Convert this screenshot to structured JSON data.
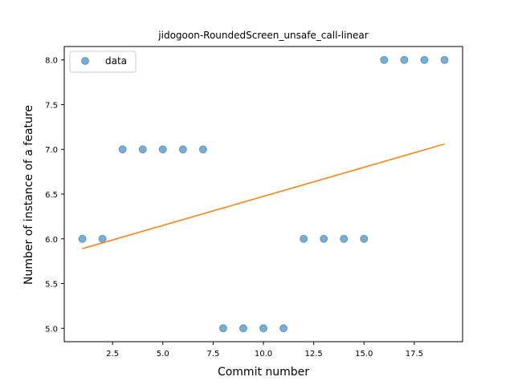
{
  "chart_data": {
    "type": "scatter",
    "title": "jidogoon-RoundedScreen_unsafe_call-linear",
    "xlabel": "Commit number",
    "ylabel": "Number of instance of a feature",
    "xlim": [
      0.1,
      19.9
    ],
    "ylim": [
      4.85,
      8.15
    ],
    "xticks": [
      2.5,
      5.0,
      7.5,
      10.0,
      12.5,
      15.0,
      17.5
    ],
    "xtick_labels": [
      "2.5",
      "5.0",
      "7.5",
      "10.0",
      "12.5",
      "15.0",
      "17.5"
    ],
    "yticks": [
      5.0,
      5.5,
      6.0,
      6.5,
      7.0,
      7.5,
      8.0
    ],
    "ytick_labels": [
      "5.0",
      "5.5",
      "6.0",
      "6.5",
      "7.0",
      "7.5",
      "8.0"
    ],
    "grid": false,
    "legend_position": "top-left",
    "series": [
      {
        "name": "data",
        "kind": "scatter",
        "color": "#1f77b4",
        "x": [
          1,
          2,
          3,
          4,
          5,
          6,
          7,
          8,
          9,
          10,
          11,
          12,
          13,
          14,
          15,
          16,
          17,
          18,
          19
        ],
        "y": [
          6,
          6,
          7,
          7,
          7,
          7,
          7,
          5,
          5,
          5,
          5,
          6,
          6,
          6,
          6,
          8,
          8,
          8,
          8
        ]
      },
      {
        "kind": "line",
        "color": "#ff7f0e",
        "x": [
          1,
          19
        ],
        "y": [
          5.89,
          7.06
        ]
      }
    ]
  }
}
